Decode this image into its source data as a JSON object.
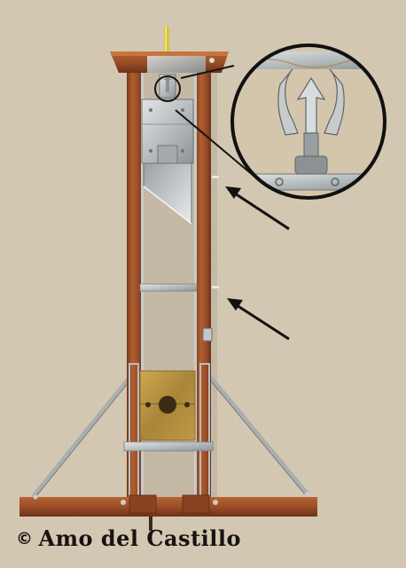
{
  "credit": {
    "symbol": "©",
    "text": "Amo del Castillo"
  },
  "colors": {
    "background": "#d6c9b0",
    "wood": "#a1532e",
    "wood_dark": "#6e3419",
    "steel": "#bfc4c6",
    "steel_dark": "#7b8184",
    "brass": "#b8933f",
    "arrow": "#111111"
  },
  "icons": [
    "guillotine-illustration",
    "magnifier-callout",
    "pointer-arrow"
  ]
}
